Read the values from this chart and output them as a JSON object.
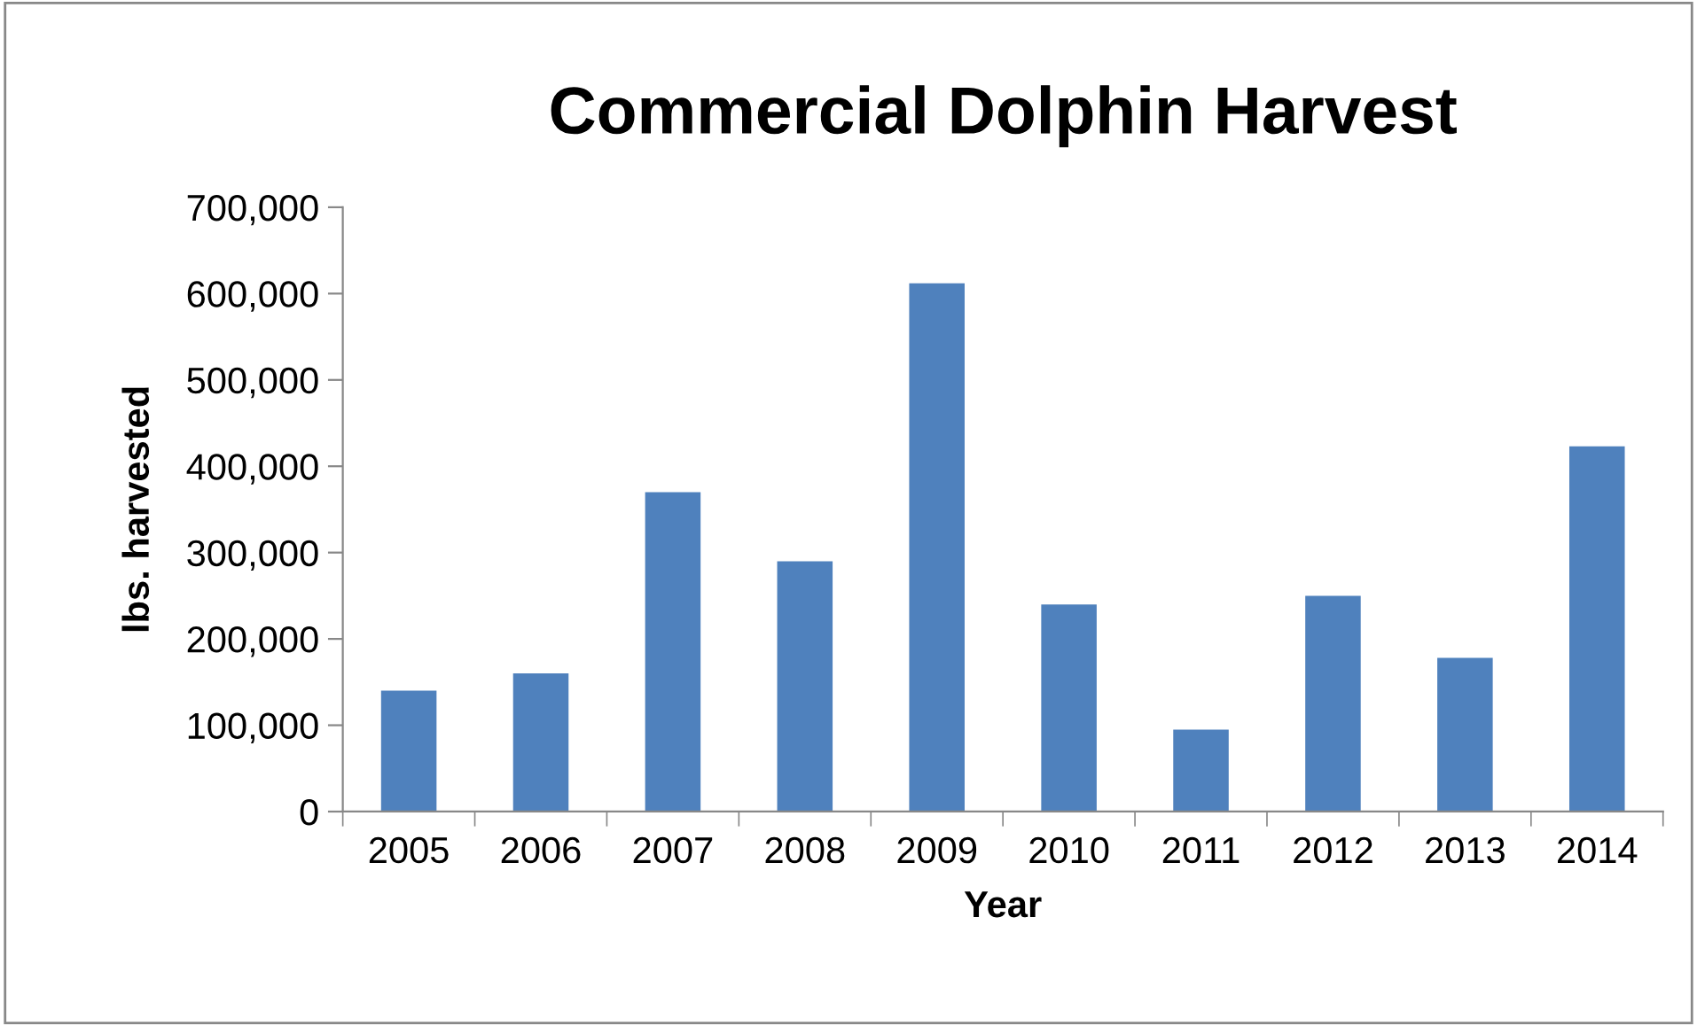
{
  "chart_data": {
    "type": "bar",
    "title": "Commercial Dolphin Harvest",
    "xlabel": "Year",
    "ylabel": "lbs. harvested",
    "categories": [
      "2005",
      "2006",
      "2007",
      "2008",
      "2009",
      "2010",
      "2011",
      "2012",
      "2013",
      "2014"
    ],
    "values": [
      140000,
      160000,
      370000,
      290000,
      612000,
      240000,
      95000,
      250000,
      178000,
      423000
    ],
    "color": "#4f81bd",
    "ylim": [
      0,
      700000
    ],
    "yticks": [
      {
        "value": 0,
        "label": "0"
      },
      {
        "value": 100000,
        "label": "100,000"
      },
      {
        "value": 200000,
        "label": "200,000"
      },
      {
        "value": 300000,
        "label": "300,000"
      },
      {
        "value": 400000,
        "label": "400,000"
      },
      {
        "value": 500000,
        "label": "500,000"
      },
      {
        "value": 600000,
        "label": "600,000"
      },
      {
        "value": 700000,
        "label": "700,000"
      }
    ],
    "grid": false,
    "legend": false
  }
}
